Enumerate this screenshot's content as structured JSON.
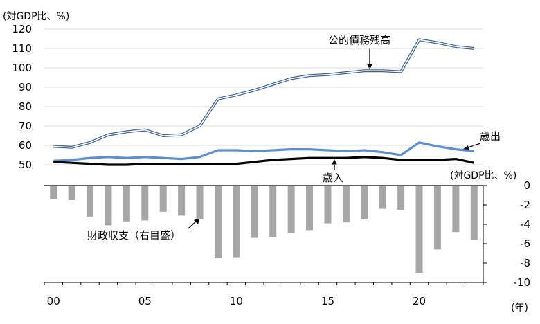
{
  "chart_data": {
    "type": "line",
    "x": [
      2000,
      2001,
      2002,
      2003,
      2004,
      2005,
      2006,
      2007,
      2008,
      2009,
      2010,
      2011,
      2012,
      2013,
      2014,
      2015,
      2016,
      2017,
      2018,
      2019,
      2020,
      2021,
      2022,
      2023
    ],
    "x_tick_labels": [
      {
        "x": 2000,
        "label": "00"
      },
      {
        "x": 2005,
        "label": "05"
      },
      {
        "x": 2010,
        "label": "10"
      },
      {
        "x": 2015,
        "label": "15"
      },
      {
        "x": 2020,
        "label": "20"
      }
    ],
    "x_unit": "(年)",
    "top_panel": {
      "unit_label": "(対GDP比、%)",
      "ylim": [
        50,
        120
      ],
      "yticks": [
        50,
        60,
        70,
        80,
        90,
        100,
        110,
        120
      ],
      "grid": true,
      "series": [
        {
          "name": "公的債務残高",
          "style": "double-line",
          "color": "#3a5f9a",
          "values": [
            59.5,
            59.0,
            61.5,
            65.5,
            67.0,
            68.0,
            65.0,
            65.5,
            70.0,
            84.0,
            86.0,
            88.5,
            91.5,
            94.5,
            96.0,
            96.5,
            97.5,
            98.5,
            98.5,
            98.0,
            114.5,
            113.0,
            111.0,
            110.0
          ]
        },
        {
          "name": "歳出",
          "style": "line",
          "color": "#5b8fd0",
          "values": [
            52.0,
            52.5,
            53.5,
            54.0,
            53.5,
            54.0,
            53.5,
            53.0,
            54.0,
            57.5,
            57.5,
            57.0,
            57.5,
            58.0,
            58.0,
            57.5,
            57.0,
            57.5,
            56.5,
            55.0,
            61.5,
            59.5,
            58.0,
            57.0
          ]
        },
        {
          "name": "歳入",
          "style": "line",
          "color": "#000000",
          "values": [
            51.5,
            51.0,
            50.5,
            50.0,
            50.0,
            50.5,
            50.5,
            50.5,
            50.5,
            50.5,
            50.5,
            51.5,
            52.5,
            53.0,
            53.5,
            53.5,
            53.5,
            54.0,
            53.5,
            52.5,
            52.5,
            52.5,
            53.0,
            51.0
          ]
        }
      ]
    },
    "bottom_panel": {
      "type": "bar",
      "unit_label": "(対GDP比、%)",
      "ylim": [
        -10,
        0
      ],
      "yticks": [
        0,
        -2,
        -4,
        -6,
        -8,
        -10
      ],
      "grid": false,
      "series": [
        {
          "name": "財政収支（右目盛）",
          "color": "#a6a6a6",
          "values": [
            -1.4,
            -1.5,
            -3.2,
            -4.1,
            -3.7,
            -3.6,
            -2.7,
            -3.1,
            -3.5,
            -7.5,
            -7.4,
            -5.4,
            -5.3,
            -4.9,
            -4.6,
            -3.9,
            -3.8,
            -3.5,
            -2.4,
            -2.5,
            -9.0,
            -6.6,
            -4.8,
            -5.6
          ]
        }
      ]
    },
    "annotations": [
      {
        "text": "公的債務残高",
        "points_to": "公的債務残高"
      },
      {
        "text": "歳出",
        "points_to": "歳出"
      },
      {
        "text": "歳入",
        "points_to": "歳入"
      },
      {
        "text": "財政収支（右目盛）",
        "points_to": "財政収支（右目盛）"
      }
    ]
  }
}
